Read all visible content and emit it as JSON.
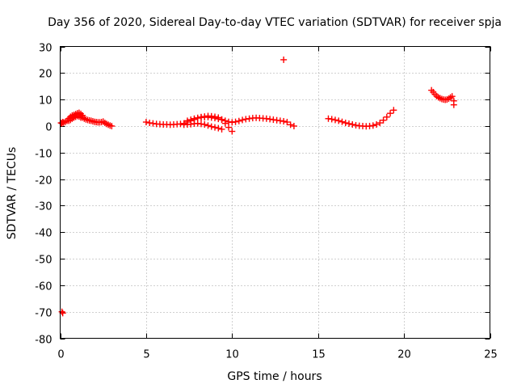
{
  "chart_data": {
    "type": "scatter",
    "title": "Day 356 of 2020, Sidereal Day-to-day VTEC variation (SDTVAR) for receiver spja",
    "xlabel": "GPS time / hours",
    "ylabel": "SDTVAR / TECUs",
    "xlim": [
      0,
      25
    ],
    "ylim": [
      -80,
      30
    ],
    "xticks": [
      0,
      5,
      10,
      15,
      20,
      25
    ],
    "yticks": [
      30,
      20,
      10,
      0,
      -10,
      -20,
      -30,
      -40,
      -50,
      -60,
      -70,
      -80
    ],
    "xtick_labels": [
      "0",
      "5",
      "10",
      "15",
      "20",
      "25"
    ],
    "ytick_labels": [
      "30",
      "20",
      "10",
      "0",
      "-10",
      "-20",
      "-30",
      "-40",
      "-50",
      "-60",
      "-70",
      "-80"
    ],
    "grid": true,
    "marker": "plus",
    "color": "#ff0000",
    "series": [
      {
        "name": "SDTVAR",
        "x": [
          0.05,
          0.1,
          0.15,
          0.2,
          0.3,
          0.4,
          0.5,
          0.6,
          0.7,
          0.8,
          0.9,
          1.0,
          1.1,
          1.2,
          1.3,
          1.4,
          1.5,
          1.6,
          1.7,
          1.8,
          1.9,
          2.0,
          2.1,
          2.2,
          2.3,
          2.4,
          2.5,
          2.6,
          2.7,
          2.8,
          2.9,
          3.0,
          0.5,
          0.6,
          0.7,
          0.8,
          0.9,
          1.0,
          1.1,
          1.2,
          0.6,
          0.7,
          0.8,
          0.9,
          1.0,
          1.1,
          1.2,
          1.3,
          5.0,
          5.2,
          5.4,
          5.6,
          5.8,
          6.0,
          6.2,
          6.4,
          6.6,
          6.8,
          7.0,
          7.2,
          7.4,
          7.6,
          7.8,
          8.0,
          8.2,
          8.4,
          8.6,
          8.8,
          9.0,
          9.2,
          9.4,
          9.6,
          9.8,
          10.0,
          10.2,
          10.4,
          10.6,
          10.8,
          11.0,
          11.2,
          11.4,
          11.6,
          11.8,
          12.0,
          12.2,
          12.4,
          12.6,
          12.8,
          13.0,
          13.2,
          13.4,
          13.6,
          7.2,
          7.4,
          7.6,
          7.8,
          8.0,
          8.2,
          8.4,
          8.6,
          8.8,
          9.0,
          9.2,
          9.4,
          7.4,
          7.6,
          7.8,
          8.0,
          8.2,
          8.4,
          8.6,
          8.8,
          9.0,
          9.2,
          9.4,
          9.6,
          9.8,
          10.0,
          15.6,
          15.8,
          16.0,
          16.2,
          16.4,
          16.6,
          16.8,
          17.0,
          17.2,
          17.4,
          17.6,
          17.8,
          18.0,
          18.2,
          18.4,
          18.6,
          18.8,
          19.0,
          19.2,
          19.4,
          21.6,
          21.7,
          21.8,
          21.9,
          22.0,
          22.1,
          22.2,
          22.3,
          22.4,
          22.5,
          22.6,
          22.7,
          22.8,
          22.9,
          22.9,
          13.0,
          0.1,
          0.15
        ],
        "y": [
          1.2,
          1.0,
          1.5,
          1.3,
          1.6,
          2.0,
          2.8,
          3.5,
          4.0,
          4.2,
          4.5,
          4.6,
          4.3,
          3.8,
          3.2,
          2.8,
          2.5,
          2.3,
          2.1,
          2.0,
          1.8,
          1.6,
          1.5,
          1.4,
          1.4,
          1.5,
          1.7,
          1.2,
          0.8,
          0.5,
          0.2,
          0.0,
          2.0,
          2.3,
          2.8,
          3.2,
          3.5,
          3.8,
          3.6,
          3.2,
          3.0,
          3.4,
          3.9,
          4.3,
          4.8,
          5.0,
          4.6,
          4.0,
          1.5,
          1.2,
          1.0,
          0.8,
          0.7,
          0.6,
          0.6,
          0.5,
          0.6,
          0.7,
          0.8,
          1.0,
          1.5,
          2.0,
          2.5,
          3.0,
          3.2,
          3.3,
          3.4,
          3.2,
          3.0,
          2.7,
          2.4,
          2.0,
          1.6,
          1.4,
          1.6,
          1.9,
          2.3,
          2.6,
          2.8,
          3.0,
          3.1,
          3.0,
          2.9,
          2.8,
          2.6,
          2.4,
          2.2,
          2.0,
          1.8,
          1.5,
          0.5,
          0.0,
          0.5,
          0.6,
          0.7,
          0.9,
          1.0,
          0.8,
          0.6,
          0.2,
          -0.2,
          -0.5,
          -0.8,
          -1.2,
          2.0,
          2.4,
          2.8,
          3.1,
          3.4,
          3.6,
          3.8,
          3.7,
          3.5,
          3.2,
          2.5,
          1.0,
          -0.5,
          -2.0,
          2.8,
          2.6,
          2.3,
          2.0,
          1.6,
          1.2,
          0.9,
          0.6,
          0.3,
          0.1,
          0.0,
          -0.1,
          0.0,
          0.2,
          0.6,
          1.2,
          2.2,
          3.4,
          4.8,
          6.0,
          13.5,
          12.8,
          12.0,
          11.3,
          10.8,
          10.5,
          10.2,
          10.0,
          9.9,
          10.0,
          10.3,
          10.8,
          11.2,
          8.0,
          9.5,
          25.0,
          -70.0,
          -70.5
        ]
      }
    ]
  }
}
